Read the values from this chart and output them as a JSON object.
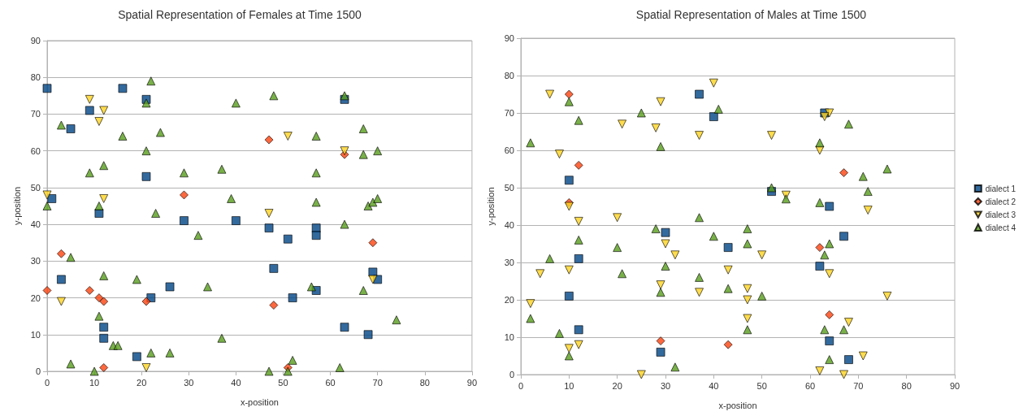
{
  "chart_data": [
    {
      "type": "scatter",
      "title": "Spatial Representation of Females at Time 1500",
      "xlabel": "x-position",
      "ylabel": "y-position",
      "xlim": [
        0,
        90
      ],
      "ylim": [
        0,
        90
      ],
      "xticks": [
        0,
        10,
        20,
        30,
        40,
        50,
        60,
        70,
        80,
        90
      ],
      "yticks": [
        0,
        10,
        20,
        30,
        40,
        50,
        60,
        70,
        80,
        90
      ],
      "grid": "y",
      "legend": false,
      "series": [
        {
          "color": "#004586",
          "marker": "square",
          "x": [
            0,
            1,
            5,
            9,
            16,
            21,
            21,
            11,
            29,
            40,
            47,
            51,
            57,
            57,
            63,
            3,
            26,
            22,
            12,
            12,
            19,
            48,
            52,
            57,
            69,
            70,
            63,
            68
          ],
          "values": [
            77,
            47,
            66,
            71,
            77,
            74,
            53,
            43,
            41,
            41,
            39,
            36,
            39,
            37,
            74,
            25,
            23,
            20,
            12,
            9,
            4,
            28,
            20,
            22,
            27,
            25,
            12,
            10
          ]
        },
        {
          "color": "#ff420e",
          "marker": "diamond",
          "x": [
            47,
            29,
            63,
            3,
            0,
            9,
            11,
            12,
            21,
            12,
            48,
            51,
            69
          ],
          "values": [
            63,
            48,
            59,
            32,
            22,
            22,
            20,
            19,
            19,
            1,
            18,
            1,
            35
          ]
        },
        {
          "color": "#ffd320",
          "marker": "triangle-down",
          "x": [
            9,
            12,
            11,
            0,
            12,
            51,
            63,
            47,
            3,
            21,
            69
          ],
          "values": [
            74,
            71,
            68,
            48,
            47,
            64,
            60,
            43,
            19,
            1,
            25
          ]
        },
        {
          "color": "#579d1c",
          "marker": "triangle",
          "x": [
            22,
            48,
            40,
            21,
            63,
            3,
            24,
            16,
            57,
            67,
            21,
            67,
            70,
            9,
            12,
            29,
            37,
            57,
            39,
            57,
            68,
            69,
            70,
            0,
            11,
            23,
            63,
            32,
            5,
            12,
            19,
            34,
            56,
            67,
            11,
            74,
            37,
            14,
            15,
            22,
            26,
            5,
            10,
            47,
            52,
            51,
            62
          ],
          "values": [
            79,
            75,
            73,
            73,
            75,
            67,
            65,
            64,
            64,
            66,
            60,
            59,
            60,
            54,
            56,
            54,
            55,
            54,
            47,
            46,
            45,
            46,
            47,
            45,
            45,
            43,
            40,
            37,
            31,
            26,
            25,
            23,
            23,
            22,
            15,
            14,
            9,
            7,
            7,
            5,
            5,
            2,
            0,
            0,
            3,
            0,
            1
          ]
        }
      ]
    },
    {
      "type": "scatter",
      "title": "Spatial Representation of Males at Time 1500",
      "xlabel": "x-position",
      "ylabel": "y-position",
      "xlim": [
        0,
        90
      ],
      "ylim": [
        0,
        90
      ],
      "xticks": [
        0,
        10,
        20,
        30,
        40,
        50,
        60,
        70,
        80,
        90
      ],
      "yticks": [
        0,
        10,
        20,
        30,
        40,
        50,
        60,
        70,
        80,
        90
      ],
      "grid": "y",
      "legend": "right",
      "series": [
        {
          "name": "dialect 1",
          "color": "#004586",
          "marker": "square",
          "x": [
            10,
            37,
            40,
            63,
            52,
            64,
            30,
            12,
            43,
            62,
            67,
            10,
            12,
            29,
            64,
            68
          ],
          "values": [
            52,
            75,
            69,
            70,
            49,
            45,
            38,
            31,
            34,
            29,
            37,
            21,
            12,
            6,
            9,
            4
          ]
        },
        {
          "name": "dialect 2",
          "color": "#ff420e",
          "marker": "diamond",
          "x": [
            10,
            12,
            10,
            67,
            62,
            64,
            29,
            43
          ],
          "values": [
            75,
            56,
            46,
            54,
            34,
            16,
            9,
            8
          ]
        },
        {
          "name": "dialect 3",
          "color": "#ffd320",
          "marker": "triangle-down",
          "x": [
            6,
            8,
            21,
            28,
            29,
            37,
            40,
            52,
            62,
            64,
            63,
            55,
            72,
            10,
            12,
            20,
            2,
            4,
            10,
            30,
            32,
            43,
            50,
            29,
            37,
            47,
            47,
            47,
            64,
            76,
            10,
            12,
            25,
            62,
            67,
            71,
            68
          ],
          "values": [
            75,
            59,
            67,
            66,
            73,
            64,
            78,
            64,
            60,
            70,
            69,
            48,
            44,
            45,
            41,
            42,
            19,
            27,
            28,
            35,
            32,
            28,
            32,
            24,
            22,
            23,
            20,
            15,
            27,
            21,
            7,
            8,
            0,
            1,
            0,
            5,
            14
          ]
        },
        {
          "name": "dialect 4",
          "color": "#579d1c",
          "marker": "triangle",
          "x": [
            2,
            10,
            12,
            25,
            29,
            41,
            62,
            68,
            52,
            55,
            62,
            71,
            72,
            76,
            37,
            28,
            40,
            47,
            47,
            12,
            20,
            6,
            64,
            63,
            30,
            21,
            37,
            43,
            29,
            50,
            2,
            8,
            10,
            47,
            63,
            67,
            64,
            32
          ],
          "values": [
            62,
            73,
            68,
            70,
            61,
            71,
            62,
            67,
            50,
            47,
            46,
            53,
            49,
            55,
            42,
            39,
            37,
            39,
            35,
            36,
            34,
            31,
            35,
            32,
            29,
            27,
            26,
            23,
            22,
            21,
            15,
            11,
            5,
            12,
            12,
            12,
            4,
            2
          ]
        }
      ]
    }
  ]
}
